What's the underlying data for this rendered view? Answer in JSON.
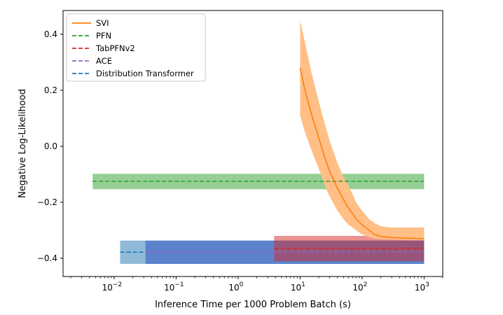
{
  "chart_data": {
    "type": "line",
    "xlabel": "Inference Time per 1000 Problem Batch (s)",
    "ylabel": "Negative Log-Likelihood",
    "xscale": "log",
    "xlim": [
      0.0015,
      2000
    ],
    "ylim": [
      -0.465,
      0.485
    ],
    "x_ticks": [
      {
        "value": 0.01,
        "base": "10",
        "exp": "−2"
      },
      {
        "value": 0.1,
        "base": "10",
        "exp": "−1"
      },
      {
        "value": 1,
        "base": "10",
        "exp": "0"
      },
      {
        "value": 10,
        "base": "10",
        "exp": "1"
      },
      {
        "value": 100,
        "base": "10",
        "exp": "2"
      },
      {
        "value": 1000,
        "base": "10",
        "exp": "3"
      }
    ],
    "y_ticks": [
      {
        "value": 0.4,
        "label": "0.4"
      },
      {
        "value": 0.2,
        "label": "0.2"
      },
      {
        "value": 0.0,
        "label": "0.0"
      },
      {
        "value": -0.2,
        "label": "−0.2"
      },
      {
        "value": -0.4,
        "label": "−0.4"
      }
    ],
    "series": [
      {
        "name": "SVI",
        "style": "solid",
        "color": "#ff7f0e",
        "band_color": "#ffbf86",
        "x": [
          10,
          12,
          15,
          20,
          25,
          30,
          40,
          50,
          60,
          70,
          80,
          100,
          130,
          160,
          200,
          300,
          500,
          1000
        ],
        "y": [
          0.28,
          0.2,
          0.12,
          0.03,
          -0.04,
          -0.09,
          -0.15,
          -0.19,
          -0.22,
          -0.24,
          -0.26,
          -0.28,
          -0.3,
          -0.315,
          -0.322,
          -0.326,
          -0.328,
          -0.33
        ],
        "lower": [
          0.11,
          0.05,
          -0.01,
          -0.08,
          -0.14,
          -0.18,
          -0.23,
          -0.26,
          -0.28,
          -0.29,
          -0.3,
          -0.315,
          -0.325,
          -0.33,
          -0.332,
          -0.333,
          -0.334,
          -0.335
        ],
        "upper": [
          0.45,
          0.37,
          0.27,
          0.16,
          0.08,
          0.02,
          -0.06,
          -0.11,
          -0.14,
          -0.17,
          -0.2,
          -0.23,
          -0.26,
          -0.275,
          -0.285,
          -0.29,
          -0.29,
          -0.29
        ]
      },
      {
        "name": "PFN",
        "style": "dashed",
        "color": "#2ca02c",
        "band_color": "#2ca02c",
        "x": [
          0.0045,
          1000
        ],
        "y": [
          -0.125,
          -0.125
        ],
        "lower": [
          -0.153,
          -0.153
        ],
        "upper": [
          -0.098,
          -0.098
        ]
      },
      {
        "name": "TabPFNv2",
        "style": "dashed",
        "color": "#d62728",
        "band_color": "#d62728",
        "x": [
          3.8,
          1000
        ],
        "y": [
          -0.365,
          -0.365
        ],
        "lower": [
          -0.41,
          -0.41
        ],
        "upper": [
          -0.32,
          -0.32
        ]
      },
      {
        "name": "ACE",
        "style": "dashed",
        "color": "#9467bd",
        "band_color": "#4a6fc4",
        "x": [
          0.032,
          1000
        ],
        "y": [
          -0.378,
          -0.378
        ],
        "lower": [
          -0.42,
          -0.42
        ],
        "upper": [
          -0.337,
          -0.337
        ]
      },
      {
        "name": "Distribution Transformer",
        "style": "dashed",
        "color": "#1f77b4",
        "band_color": "#1f77b4",
        "x": [
          0.0125,
          1000
        ],
        "y": [
          -0.378,
          -0.378
        ],
        "lower": [
          -0.42,
          -0.42
        ],
        "upper": [
          -0.337,
          -0.337
        ]
      }
    ],
    "legend": {
      "position": "top-left",
      "entries": [
        "SVI",
        "PFN",
        "TabPFNv2",
        "ACE",
        "Distribution Transformer"
      ]
    }
  }
}
